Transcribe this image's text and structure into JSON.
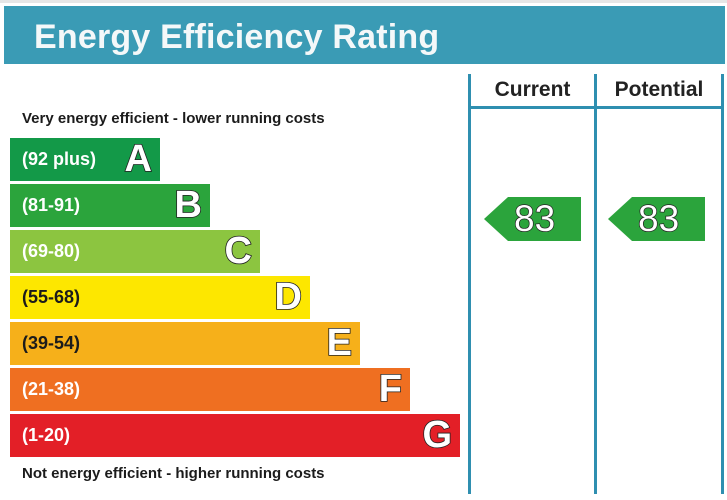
{
  "header": {
    "title": "Energy Efficiency Rating"
  },
  "columns": {
    "current_label": "Current",
    "potential_label": "Potential"
  },
  "notes": {
    "top": "Very energy efficient - lower running costs",
    "bottom": "Not energy efficient - higher running costs"
  },
  "chart_data": {
    "type": "bar",
    "title": "Energy Efficiency Rating",
    "bands": [
      {
        "letter": "A",
        "range": "(92 plus)",
        "color": "#139948"
      },
      {
        "letter": "B",
        "range": "(81-91)",
        "color": "#2ba43c"
      },
      {
        "letter": "C",
        "range": "(69-80)",
        "color": "#8cc540"
      },
      {
        "letter": "D",
        "range": "(55-68)",
        "color": "#fde700"
      },
      {
        "letter": "E",
        "range": "(39-54)",
        "color": "#f6b01a"
      },
      {
        "letter": "F",
        "range": "(21-38)",
        "color": "#ef6f21"
      },
      {
        "letter": "G",
        "range": "(1-20)",
        "color": "#e31f27"
      }
    ],
    "current": {
      "value": 83,
      "band": "B",
      "color": "#2ba43c"
    },
    "potential": {
      "value": 83,
      "band": "B",
      "color": "#2ba43c"
    }
  }
}
